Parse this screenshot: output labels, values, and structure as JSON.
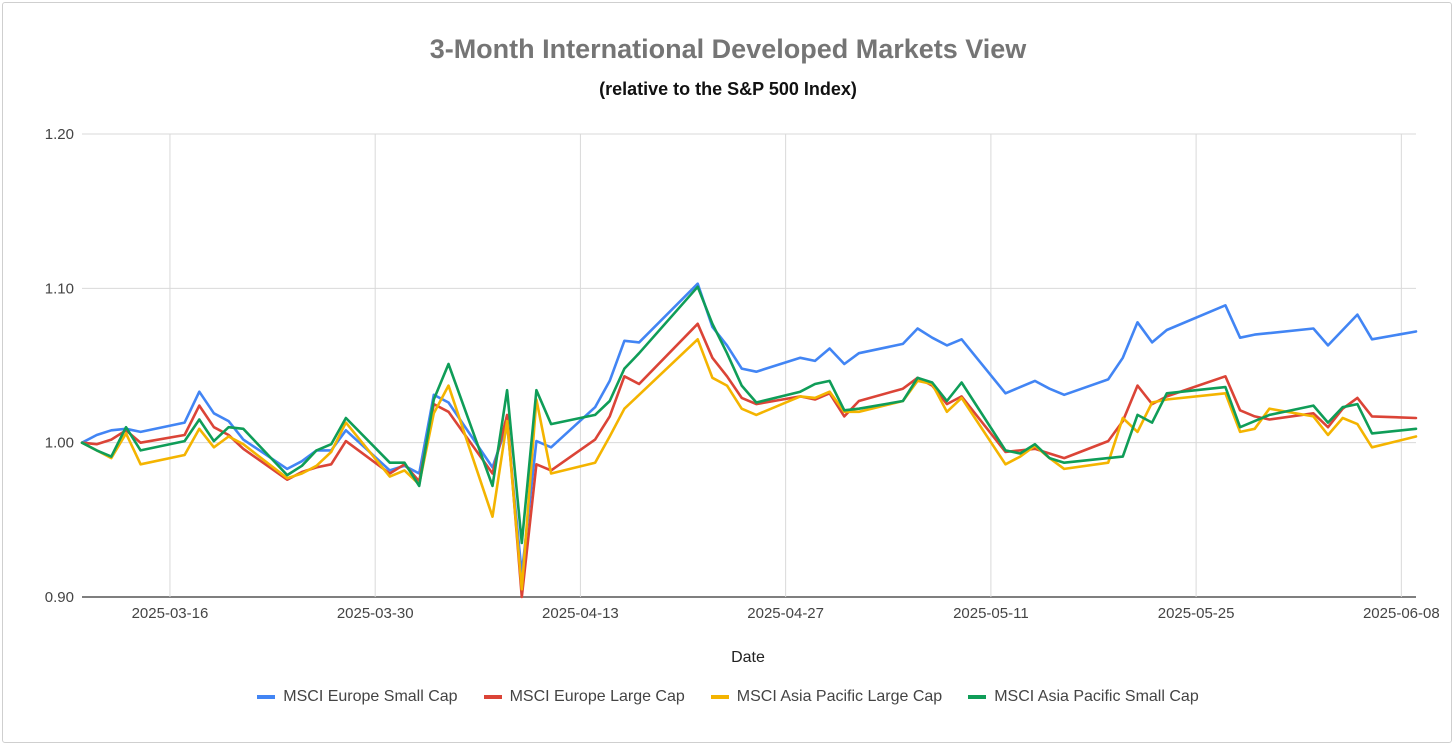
{
  "chart_data": {
    "type": "line",
    "title": "3-Month International Developed Markets View",
    "subtitle": "(relative to the S&P 500 Index)",
    "xlabel": "Date",
    "ylabel": "",
    "ylim": [
      0.9,
      1.2
    ],
    "y_ticks": [
      "0.90",
      "1.00",
      "1.10",
      "1.20"
    ],
    "x_start": "2025-03-10",
    "x_end": "2025-06-09",
    "x_ticks": [
      "2025-03-16",
      "2025-03-30",
      "2025-04-13",
      "2025-04-27",
      "2025-05-11",
      "2025-05-25",
      "2025-06-08"
    ],
    "x": [
      "2025-03-10",
      "2025-03-11",
      "2025-03-12",
      "2025-03-13",
      "2025-03-14",
      "2025-03-17",
      "2025-03-18",
      "2025-03-19",
      "2025-03-20",
      "2025-03-21",
      "2025-03-24",
      "2025-03-25",
      "2025-03-26",
      "2025-03-27",
      "2025-03-28",
      "2025-03-31",
      "2025-04-01",
      "2025-04-02",
      "2025-04-03",
      "2025-04-04",
      "2025-04-07",
      "2025-04-08",
      "2025-04-09",
      "2025-04-10",
      "2025-04-11",
      "2025-04-14",
      "2025-04-15",
      "2025-04-16",
      "2025-04-17",
      "2025-04-21",
      "2025-04-22",
      "2025-04-23",
      "2025-04-24",
      "2025-04-25",
      "2025-04-28",
      "2025-04-29",
      "2025-04-30",
      "2025-05-01",
      "2025-05-02",
      "2025-05-05",
      "2025-05-06",
      "2025-05-07",
      "2025-05-08",
      "2025-05-09",
      "2025-05-12",
      "2025-05-13",
      "2025-05-14",
      "2025-05-15",
      "2025-05-16",
      "2025-05-19",
      "2025-05-20",
      "2025-05-21",
      "2025-05-22",
      "2025-05-23",
      "2025-05-27",
      "2025-05-28",
      "2025-05-29",
      "2025-05-30",
      "2025-06-02",
      "2025-06-03",
      "2025-06-04",
      "2025-06-05",
      "2025-06-06",
      "2025-06-09"
    ],
    "series": [
      {
        "name": "MSCI Europe Small Cap",
        "color": "#4285F4",
        "values": [
          1.0,
          1.005,
          1.008,
          1.009,
          1.007,
          1.013,
          1.033,
          1.019,
          1.014,
          1.002,
          0.983,
          0.988,
          0.995,
          0.995,
          1.008,
          0.982,
          0.985,
          0.98,
          1.031,
          1.026,
          0.984,
          1.012,
          0.915,
          1.001,
          0.997,
          1.023,
          1.04,
          1.066,
          1.065,
          1.103,
          1.075,
          1.063,
          1.048,
          1.046,
          1.055,
          1.053,
          1.061,
          1.051,
          1.058,
          1.064,
          1.074,
          1.068,
          1.063,
          1.067,
          1.032,
          1.036,
          1.04,
          1.035,
          1.031,
          1.041,
          1.055,
          1.078,
          1.065,
          1.073,
          1.089,
          1.068,
          1.07,
          1.071,
          1.074,
          1.063,
          1.073,
          1.083,
          1.067,
          1.072
        ]
      },
      {
        "name": "MSCI Europe Large Cap",
        "color": "#DB4437",
        "values": [
          1.0,
          0.999,
          1.002,
          1.008,
          1.0,
          1.005,
          1.024,
          1.01,
          1.005,
          0.996,
          0.976,
          0.981,
          0.984,
          0.986,
          1.001,
          0.98,
          0.986,
          0.975,
          1.025,
          1.02,
          0.98,
          1.018,
          0.9,
          0.986,
          0.982,
          1.002,
          1.017,
          1.043,
          1.038,
          1.077,
          1.055,
          1.043,
          1.029,
          1.025,
          1.03,
          1.028,
          1.032,
          1.017,
          1.027,
          1.035,
          1.042,
          1.037,
          1.025,
          1.03,
          0.994,
          0.995,
          0.996,
          0.993,
          0.99,
          1.001,
          1.014,
          1.037,
          1.025,
          1.03,
          1.043,
          1.021,
          1.017,
          1.015,
          1.019,
          1.01,
          1.022,
          1.029,
          1.017,
          1.016
        ]
      },
      {
        "name": "MSCI Asia Pacific Large Cap",
        "color": "#F4B400",
        "values": [
          1.0,
          0.995,
          0.99,
          1.006,
          0.986,
          0.992,
          1.009,
          0.997,
          1.004,
          0.999,
          0.977,
          0.98,
          0.985,
          0.994,
          1.013,
          0.978,
          0.982,
          0.973,
          1.019,
          1.037,
          0.952,
          1.014,
          0.905,
          1.028,
          0.98,
          0.987,
          1.004,
          1.022,
          1.031,
          1.067,
          1.042,
          1.037,
          1.022,
          1.018,
          1.03,
          1.029,
          1.033,
          1.02,
          1.02,
          1.027,
          1.04,
          1.038,
          1.02,
          1.029,
          0.986,
          0.991,
          0.998,
          0.99,
          0.983,
          0.987,
          1.016,
          1.007,
          1.026,
          1.028,
          1.032,
          1.007,
          1.009,
          1.022,
          1.017,
          1.005,
          1.016,
          1.012,
          0.997,
          1.004
        ]
      },
      {
        "name": "MSCI Asia Pacific Small Cap",
        "color": "#0F9D58",
        "values": [
          1.0,
          0.995,
          0.991,
          1.01,
          0.995,
          1.001,
          1.015,
          1.001,
          1.01,
          1.009,
          0.979,
          0.985,
          0.995,
          0.999,
          1.016,
          0.987,
          0.987,
          0.972,
          1.028,
          1.051,
          0.972,
          1.034,
          0.935,
          1.034,
          1.012,
          1.018,
          1.027,
          1.048,
          1.058,
          1.101,
          1.077,
          1.058,
          1.037,
          1.026,
          1.033,
          1.038,
          1.04,
          1.021,
          1.022,
          1.027,
          1.042,
          1.039,
          1.027,
          1.039,
          0.995,
          0.993,
          0.999,
          0.99,
          0.987,
          0.99,
          0.991,
          1.018,
          1.013,
          1.032,
          1.036,
          1.01,
          1.014,
          1.018,
          1.024,
          1.013,
          1.023,
          1.025,
          1.006,
          1.009
        ]
      }
    ]
  }
}
